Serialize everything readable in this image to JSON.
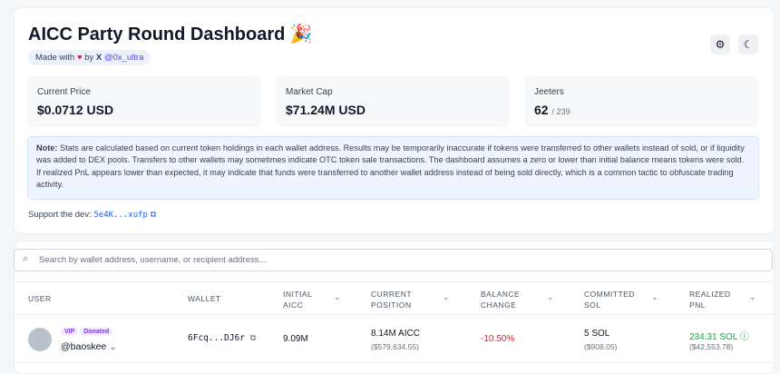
{
  "header": {
    "title": "AICC Party Round Dashboard 🎉",
    "made_with": "Made with",
    "by": "by",
    "handle": "@0x_ultra"
  },
  "stats": [
    {
      "label": "Current Price",
      "value": "$0.0712 USD"
    },
    {
      "label": "Market Cap",
      "value": "$71.24M USD"
    },
    {
      "label": "Jeeters",
      "value": "62",
      "total": "/ 239"
    }
  ],
  "note": {
    "label": "Note:",
    "text": "Stats are calculated based on current token holdings in each wallet address. Results may be temporarily inaccurate if tokens were transferred to other wallets instead of sold, or if liquidity was added to DEX pools. Transfers to other wallets may sometimes indicate OTC token sale transactions. The dashboard assumes a zero or lower than initial balance means tokens were sold. If realized PnL appears lower than expected, it may indicate that funds were transferred to another wallet address instead of being sold directly, which is a common tactic to obfuscate trading activity."
  },
  "support": {
    "label": "Support the dev:",
    "address": "5e4K...xufp"
  },
  "search": {
    "placeholder": "Search by wallet address, username, or recipient address..."
  },
  "table": {
    "headers": [
      "USER",
      "WALLET",
      "INITIAL AICC",
      "CURRENT POSITION",
      "BALANCE CHANGE",
      "COMMITTED SOL",
      "REALIZED PNL"
    ],
    "rows": [
      {
        "badges": [
          "VIP",
          "Donated"
        ],
        "username": "@baoskee",
        "wallet": "6Fcq...DJ6r",
        "initial": "9.09M",
        "current": "8.14M AICC",
        "current_usd": "($579,634.55)",
        "balance_change": "-10.50%",
        "committed": "5 SOL",
        "committed_usd": "($908.05)",
        "pnl": "234.31 SOL",
        "pnl_usd": "($42,553.78)"
      }
    ]
  }
}
